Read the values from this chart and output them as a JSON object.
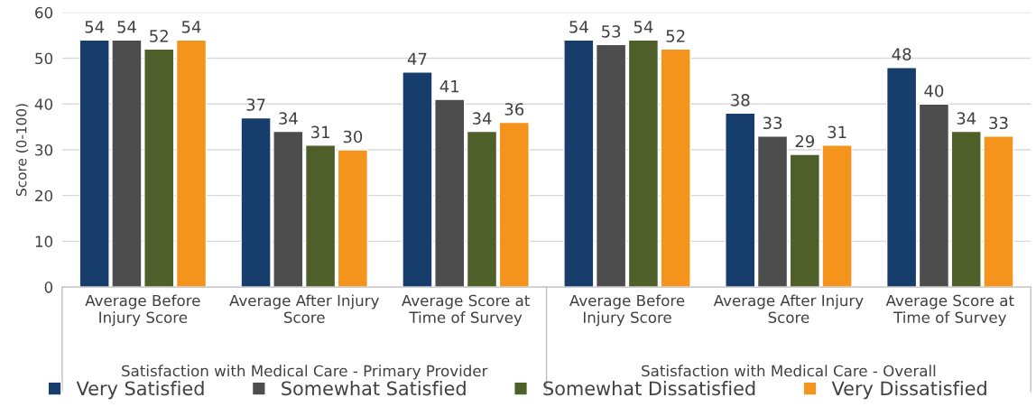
{
  "chart_data": {
    "type": "bar",
    "ylabel": "Score (0-100)",
    "categories": [
      "Average Before\nInjury Score",
      "Average After Injury\nScore",
      "Average Score at\nTime of Survey",
      "Average Before\nInjury Score",
      "Average After Injury\nScore",
      "Average Score at\nTime of Survey"
    ],
    "series": [
      {
        "name": "Very Satisfied",
        "color": "#163d6b",
        "values": [
          54,
          37,
          47,
          54,
          38,
          48
        ]
      },
      {
        "name": "Somewhat Satisfied",
        "color": "#4d4d4d",
        "values": [
          54,
          34,
          41,
          53,
          33,
          40
        ]
      },
      {
        "name": "Somewhat Dissatisfied",
        "color": "#4f5f2a",
        "values": [
          52,
          31,
          34,
          54,
          29,
          34
        ]
      },
      {
        "name": "Very Dissatisfied",
        "color": "#f4941c",
        "values": [
          54,
          30,
          36,
          52,
          31,
          33
        ]
      }
    ],
    "annotations": [
      "Satisfaction with Medical Care - Primary Provider",
      "Satisfaction with Medical Care - Overall"
    ],
    "ylim": [
      0,
      60
    ],
    "yticks": [
      0,
      10,
      20,
      30,
      40,
      50,
      60
    ],
    "grid": "y",
    "legend": "bottom",
    "data_labels": true
  }
}
